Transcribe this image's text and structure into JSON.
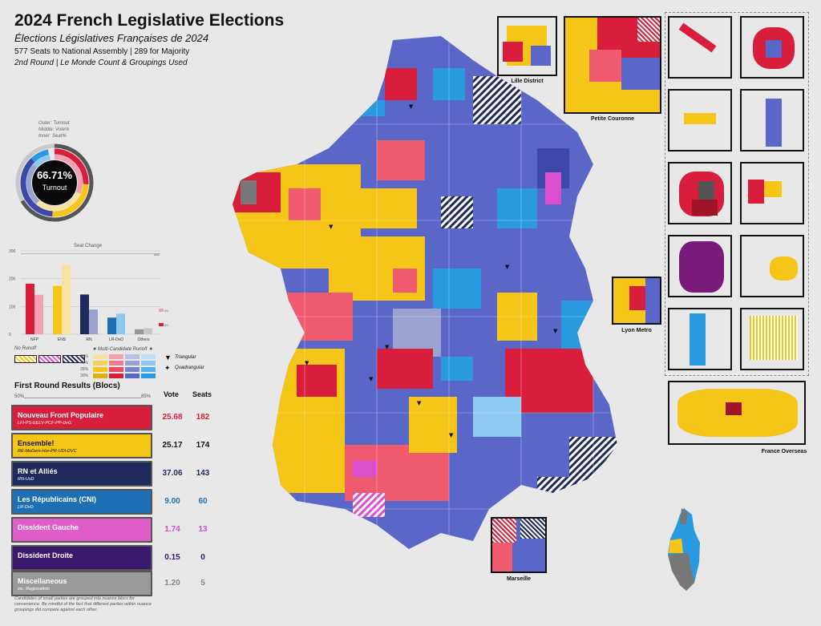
{
  "header": {
    "title": "2024 French Legislative Elections",
    "subtitle": "Élections Législatives Françaises de 2024",
    "line1": "577 Seats to National Assembly | 289 for Majority",
    "line2": "2nd Round | Le Monde Count & Groupings Used"
  },
  "turnout": {
    "legend_outer": "Outer: Turnout",
    "legend_middle": "Middle: Vote%",
    "legend_inner": "Inner: Seat%",
    "value": "66.71%",
    "label": "Turnout"
  },
  "seat_chart": {
    "title": "Seat Change",
    "y_ticks": [
      "300",
      "200",
      "100",
      "0"
    ],
    "ref_label": "289",
    "year_2022": "2022",
    "year_2024": "2024"
  },
  "chart_data": {
    "type": "bar",
    "title": "Seat Change",
    "categories": [
      "NFP",
      "ENS",
      "RN",
      "LR-DvD",
      "Others"
    ],
    "series": [
      {
        "name": "2024",
        "values": [
          182,
          174,
          143,
          60,
          18
        ]
      },
      {
        "name": "2022",
        "values": [
          142,
          250,
          89,
          74,
          22
        ]
      }
    ],
    "ylim": [
      0,
      300
    ],
    "reference_line": 289,
    "colors_2024": [
      "#d81e3c",
      "#f5c518",
      "#1f2a5c",
      "#1f6fb5",
      "#999999"
    ],
    "colors_2022": [
      "#f3a0b0",
      "#f9e2a0",
      "#9aa3d0",
      "#8cc8f0",
      "#c8c8c8"
    ]
  },
  "map_legend": {
    "no_runoff": "No Runoff",
    "multi": "★ Multi-Candidate Runoff ★",
    "triangular": "Triangular",
    "quadrangular": "Quadrangular",
    "pct": [
      "45%",
      "40%",
      "35%",
      "30%"
    ]
  },
  "results": {
    "title": "First Round Results (Blocs)",
    "vote_header": "Vote",
    "seats_header": "Seats",
    "scale_left": "50%",
    "scale_right": "85%",
    "blocs": [
      {
        "name": "Nouveau Front Populaire",
        "sub": "LFI-PS-EELV-PCF-PP-DvG",
        "vote": "25.68",
        "seats": "182",
        "color": "#d81e3c",
        "text": "#ffffff",
        "num": "#d81e3c"
      },
      {
        "name": "Ensemble!",
        "sub": "RE-MoDem-Hor-PR-UDI-DVC",
        "vote": "25.17",
        "seats": "174",
        "color": "#f5c518",
        "text": "#111111",
        "num": "#111111"
      },
      {
        "name": "RN et Alliés",
        "sub": "RN-UxD",
        "vote": "37.06",
        "seats": "143",
        "color": "#1f2a5c",
        "text": "#ffffff",
        "num": "#1f2a5c"
      },
      {
        "name": "Les Républicains (CNI)",
        "sub": "LR-DvD",
        "vote": "9.00",
        "seats": "60",
        "color": "#1f6fb5",
        "text": "#ffffff",
        "num": "#1f6fb5"
      },
      {
        "name": "Dissident Gauche",
        "sub": "",
        "vote": "1.74",
        "seats": "13",
        "color": "#e05cc8",
        "text": "#ffffff",
        "num": "#c94fc0"
      },
      {
        "name": "Dissident Droite",
        "sub": "",
        "vote": "0.15",
        "seats": "0",
        "color": "#3a1a6e",
        "text": "#ffffff",
        "num": "#3a1a6e"
      },
      {
        "name": "Miscellaneous",
        "sub": "inc. Regionalists",
        "vote": "1.20",
        "seats": "5",
        "color": "#9a9a9a",
        "text": "#ffffff",
        "num": "#888888"
      }
    ],
    "footnote": "Candidates of small parties are grouped into nuance blocs for convenience. Be mindful of the fact that different parties within nuance groupings did compete against each other."
  },
  "insets": {
    "lille": "Lille District",
    "petite": "Petite Couronne",
    "lyon": "Lyon Metro",
    "marseille": "Marseille",
    "overseas": "France Overseas"
  },
  "colors": {
    "nfp": "#d81e3c",
    "nfp_light": "#f05a6e",
    "ens": "#f5c518",
    "rn": "#5a66c8",
    "rn_dark": "#3d48a8",
    "lr": "#2a9ae0",
    "dvg": "#d94fd0",
    "misc": "#7a7a7a"
  }
}
